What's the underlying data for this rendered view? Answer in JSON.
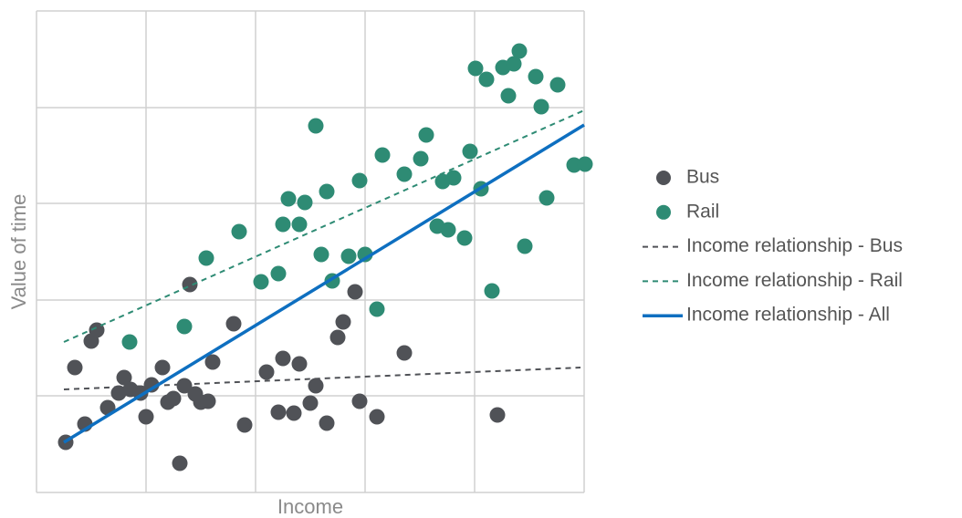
{
  "chart_data": {
    "type": "scatter",
    "x_label": "Income",
    "y_label": "Value of time",
    "xlim": [
      0,
      600
    ],
    "ylim": [
      0,
      528
    ],
    "xticks": [
      0,
      120,
      240,
      360,
      480,
      600
    ],
    "yticks": [
      0,
      106,
      211,
      317,
      422,
      528
    ],
    "grid": true,
    "tick_labels": false,
    "legend": "right",
    "series": [
      {
        "name": "Bus",
        "color": "#505257",
        "mode": "markers",
        "x": [
          42,
          53,
          60,
          66,
          78,
          90,
          96,
          103,
          114,
          120,
          126,
          138,
          144,
          150,
          157,
          162,
          168,
          174,
          180,
          188,
          193,
          216,
          228,
          252,
          265,
          270,
          282,
          288,
          300,
          306,
          318,
          330,
          336,
          349,
          354,
          373,
          403,
          505,
          32
        ],
        "values": [
          137,
          75,
          166,
          178,
          93,
          109,
          126,
          113,
          109,
          83,
          118,
          137,
          99,
          103,
          32,
          117,
          228,
          108,
          99,
          100,
          143,
          185,
          74,
          132,
          88,
          147,
          87,
          141,
          98,
          117,
          76,
          170,
          187,
          220,
          100,
          83,
          153,
          85,
          55
        ]
      },
      {
        "name": "Rail",
        "color": "#2e8b74",
        "mode": "markers",
        "x": [
          102,
          162,
          186,
          222,
          246,
          265,
          270,
          276,
          288,
          294,
          306,
          312,
          318,
          324,
          342,
          354,
          360,
          373,
          379,
          403,
          421,
          427,
          439,
          445,
          451,
          457,
          469,
          475,
          481,
          487,
          493,
          499,
          511,
          517,
          523,
          529,
          535,
          547,
          553,
          559,
          571,
          589,
          601
        ],
        "values": [
          165,
          182,
          257,
          286,
          231,
          240,
          294,
          322,
          294,
          318,
          402,
          261,
          330,
          232,
          259,
          342,
          261,
          201,
          370,
          349,
          366,
          392,
          292,
          341,
          288,
          345,
          279,
          374,
          465,
          333,
          453,
          221,
          466,
          435,
          470,
          484,
          270,
          456,
          423,
          323,
          447,
          359,
          360
        ]
      },
      {
        "name": "Income relationship - Bus",
        "color": "#505257",
        "mode": "lines",
        "style": "dashed",
        "x": [
          30,
          596
        ],
        "values": [
          113,
          137
        ]
      },
      {
        "name": "Income relationship - Rail",
        "color": "#2e8b74",
        "mode": "lines",
        "style": "dashed",
        "x": [
          30,
          600
        ],
        "values": [
          165,
          419
        ]
      },
      {
        "name": "Income relationship - All",
        "color": "#0e6fc0",
        "mode": "lines",
        "style": "solid",
        "x": [
          30,
          600
        ],
        "values": [
          55,
          403
        ]
      }
    ]
  }
}
